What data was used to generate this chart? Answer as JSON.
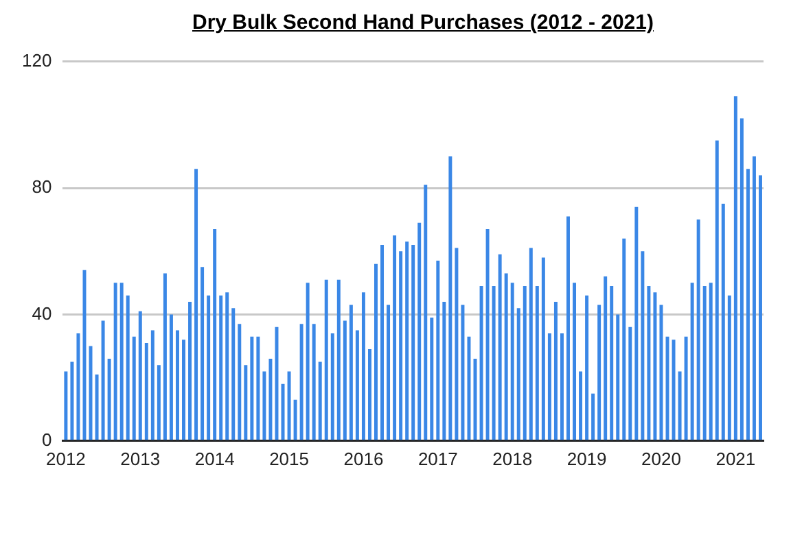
{
  "chart_data": {
    "type": "bar",
    "title": "Dry Bulk Second Hand Purchases (2012 - 2021)",
    "categories": [
      "2012",
      null,
      null,
      null,
      null,
      null,
      null,
      null,
      null,
      null,
      null,
      null,
      "2013",
      null,
      null,
      null,
      null,
      null,
      null,
      null,
      null,
      null,
      null,
      null,
      "2014",
      null,
      null,
      null,
      null,
      null,
      null,
      null,
      null,
      null,
      null,
      null,
      "2015",
      null,
      null,
      null,
      null,
      null,
      null,
      null,
      null,
      null,
      null,
      null,
      "2016",
      null,
      null,
      null,
      null,
      null,
      null,
      null,
      null,
      null,
      null,
      null,
      "2017",
      null,
      null,
      null,
      null,
      null,
      null,
      null,
      null,
      null,
      null,
      null,
      "2018",
      null,
      null,
      null,
      null,
      null,
      null,
      null,
      null,
      null,
      null,
      null,
      "2019",
      null,
      null,
      null,
      null,
      null,
      null,
      null,
      null,
      null,
      null,
      null,
      "2020",
      null,
      null,
      null,
      null,
      null,
      null,
      null,
      null,
      null,
      null,
      null,
      "2021",
      null,
      null,
      null,
      null
    ],
    "values": [
      22,
      25,
      34,
      54,
      30,
      21,
      38,
      26,
      50,
      50,
      46,
      33,
      41,
      31,
      35,
      24,
      53,
      40,
      35,
      32,
      44,
      86,
      55,
      46,
      67,
      46,
      47,
      42,
      37,
      24,
      33,
      33,
      22,
      26,
      36,
      18,
      22,
      13,
      37,
      50,
      37,
      25,
      51,
      34,
      51,
      38,
      43,
      35,
      47,
      29,
      56,
      62,
      43,
      65,
      60,
      63,
      62,
      69,
      81,
      39,
      57,
      44,
      90,
      61,
      43,
      33,
      26,
      49,
      67,
      49,
      59,
      53,
      50,
      42,
      49,
      61,
      49,
      58,
      34,
      44,
      34,
      71,
      50,
      22,
      46,
      15,
      43,
      52,
      49,
      40,
      64,
      36,
      74,
      60,
      49,
      47,
      43,
      33,
      32,
      22,
      33,
      50,
      70,
      49,
      50,
      95,
      75,
      46,
      109,
      102,
      86,
      90,
      84
    ],
    "color": "#3a87e6",
    "ylim": [
      0,
      120
    ],
    "yticks": [
      0,
      40,
      80,
      120
    ],
    "grid": "y"
  }
}
